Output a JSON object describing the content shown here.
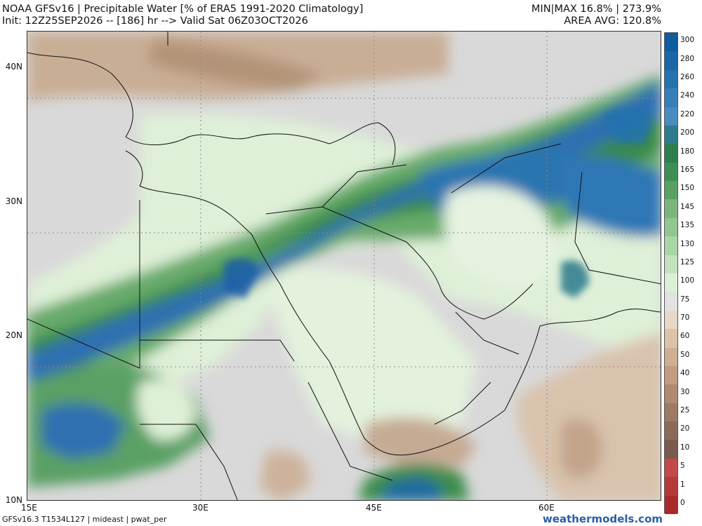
{
  "header": {
    "title": "NOAA GFSv16 | Precipitable Water [% of ERA5 1991-2020 Climatology]",
    "init": "Init: 12Z25SEP2026 -- [186] hr --> Valid Sat 06Z03OCT2026",
    "minmax": "MIN|MAX 16.8% | 273.9%",
    "area_avg": "AREA AVG: 120.8%"
  },
  "axes": {
    "lat_labels": [
      "40N",
      "30N",
      "20N",
      "10N"
    ],
    "lon_labels": [
      "15E",
      "30E",
      "45E",
      "60E"
    ],
    "lat_range": [
      10,
      45
    ],
    "lon_range": [
      15,
      70
    ]
  },
  "colorbar": {
    "labels": [
      "300",
      "280",
      "260",
      "240",
      "220",
      "200",
      "180",
      "165",
      "150",
      "145",
      "135",
      "130",
      "125",
      "100",
      "75",
      "70",
      "60",
      "50",
      "40",
      "30",
      "25",
      "20",
      "10",
      "5",
      "1",
      "0"
    ],
    "colors": [
      "#0f5c9e",
      "#1a66a6",
      "#2472ae",
      "#3580b8",
      "#4a8cbd",
      "#2c7a8c",
      "#2e7f4e",
      "#3f8f55",
      "#5aa065",
      "#7ab57c",
      "#93c591",
      "#aad5a6",
      "#c3e3bd",
      "#dcf0d6",
      "#e2e2e2",
      "#e9d8c8",
      "#dcc2a8",
      "#cfae92",
      "#c29b80",
      "#b08a70",
      "#9e7a64",
      "#8c6a58",
      "#7a5a4e",
      "#c24a4a",
      "#b73a3a",
      "#a92a2a"
    ]
  },
  "footer": {
    "left": "GFSv16.3 T1534L127 | mideast | pwat_per",
    "right": "weathermodels.com"
  }
}
